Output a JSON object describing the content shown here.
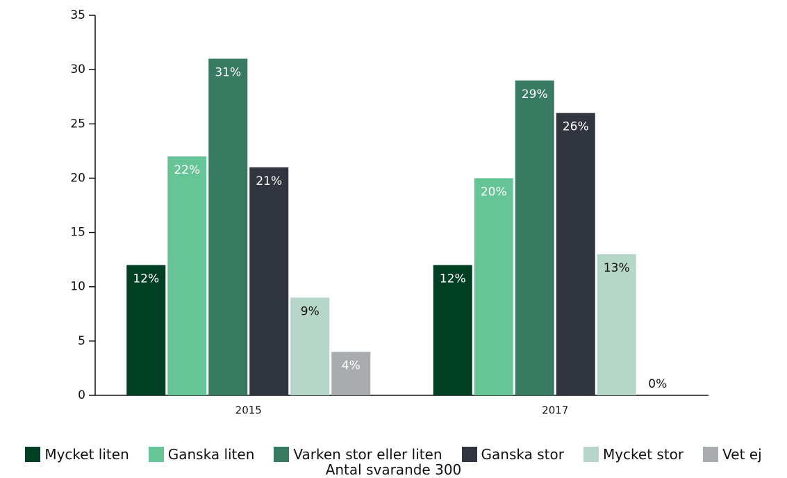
{
  "chart_data": {
    "type": "bar",
    "categories": [
      "2015",
      "2017"
    ],
    "series": [
      {
        "name": "Mycket liten",
        "color": "#013f24",
        "values": [
          12,
          12
        ],
        "value_labels": [
          "12%",
          "12%"
        ]
      },
      {
        "name": "Ganska liten",
        "color": "#66c597",
        "values": [
          22,
          20
        ],
        "value_labels": [
          "22%",
          "20%"
        ]
      },
      {
        "name": "Varken stor eller liten",
        "color": "#387a62",
        "values": [
          31,
          29
        ],
        "value_labels": [
          "31%",
          "29%"
        ]
      },
      {
        "name": "Ganska stor",
        "color": "#31353f",
        "values": [
          21,
          26
        ],
        "value_labels": [
          "21%",
          "26%"
        ]
      },
      {
        "name": "Mycket stor",
        "color": "#b5d6c9",
        "values": [
          9,
          13
        ],
        "value_labels": [
          "9%",
          "13%"
        ]
      },
      {
        "name": "Vet ej",
        "color": "#a9acaf",
        "values": [
          4,
          0
        ],
        "value_labels": [
          "4%",
          "0%"
        ]
      }
    ],
    "ylim": [
      0,
      35
    ],
    "yticks": [
      0,
      5,
      10,
      15,
      20,
      25,
      30,
      35
    ],
    "x_label": "Antal svarande 300",
    "legend": "bottom"
  }
}
